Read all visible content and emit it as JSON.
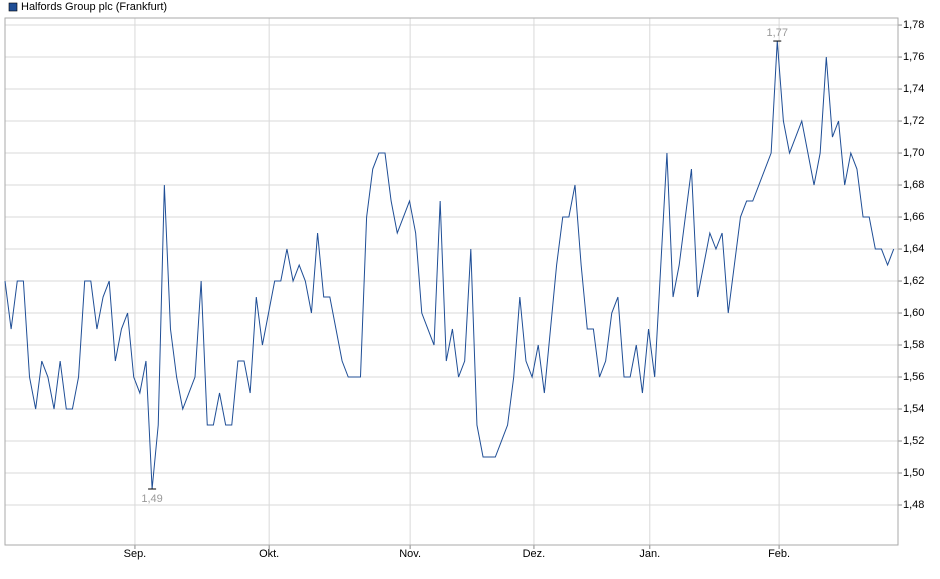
{
  "chart_data": {
    "type": "line",
    "x": [
      0,
      1,
      2,
      3,
      4,
      5,
      6,
      7,
      8,
      9,
      10,
      11,
      12,
      13,
      14,
      15,
      16,
      17,
      18,
      19,
      20,
      21,
      22,
      23,
      24,
      25,
      26,
      27,
      28,
      29,
      30,
      31,
      32,
      33,
      34,
      35,
      36,
      37,
      38,
      39,
      40,
      41,
      42,
      43,
      44,
      45,
      46,
      47,
      48,
      49,
      50,
      51,
      52,
      53,
      54,
      55,
      56,
      57,
      58,
      59,
      60,
      61,
      62,
      63,
      64,
      65,
      66,
      67,
      68,
      69,
      70,
      71,
      72,
      73,
      74,
      75,
      76,
      77,
      78,
      79,
      80,
      81,
      82,
      83,
      84,
      85,
      86,
      87,
      88,
      89,
      90,
      91,
      92,
      93,
      94,
      95,
      96,
      97,
      98,
      99,
      100,
      101,
      102,
      103,
      104,
      105,
      106,
      107,
      108,
      109,
      110,
      111,
      112,
      113,
      114,
      115,
      116,
      117,
      118,
      119,
      120,
      121,
      122,
      123,
      124,
      125,
      126,
      127,
      128,
      129,
      130,
      131,
      132,
      133,
      134,
      135,
      136,
      137,
      138,
      139,
      140,
      141,
      142,
      143,
      144,
      145
    ],
    "series": [
      {
        "name": "Halfords Group plc (Frankfurt)",
        "color": "#1f4e96",
        "values": [
          1.62,
          1.59,
          1.62,
          1.62,
          1.56,
          1.54,
          1.57,
          1.56,
          1.54,
          1.57,
          1.54,
          1.54,
          1.56,
          1.62,
          1.62,
          1.59,
          1.61,
          1.62,
          1.57,
          1.59,
          1.6,
          1.56,
          1.55,
          1.57,
          1.49,
          1.53,
          1.68,
          1.59,
          1.56,
          1.54,
          1.55,
          1.56,
          1.62,
          1.53,
          1.53,
          1.55,
          1.53,
          1.53,
          1.57,
          1.57,
          1.55,
          1.61,
          1.58,
          1.6,
          1.62,
          1.62,
          1.64,
          1.62,
          1.63,
          1.62,
          1.6,
          1.65,
          1.61,
          1.61,
          1.59,
          1.57,
          1.56,
          1.56,
          1.56,
          1.66,
          1.69,
          1.7,
          1.7,
          1.67,
          1.65,
          1.66,
          1.67,
          1.65,
          1.6,
          1.59,
          1.58,
          1.67,
          1.57,
          1.59,
          1.56,
          1.57,
          1.64,
          1.53,
          1.51,
          1.51,
          1.51,
          1.52,
          1.53,
          1.56,
          1.61,
          1.57,
          1.56,
          1.58,
          1.55,
          1.59,
          1.63,
          1.66,
          1.66,
          1.68,
          1.63,
          1.59,
          1.59,
          1.56,
          1.57,
          1.6,
          1.61,
          1.56,
          1.56,
          1.58,
          1.55,
          1.59,
          1.56,
          1.63,
          1.7,
          1.61,
          1.63,
          1.66,
          1.69,
          1.61,
          1.63,
          1.65,
          1.64,
          1.65,
          1.6,
          1.63,
          1.66,
          1.67,
          1.67,
          1.68,
          1.69,
          1.7,
          1.77,
          1.72,
          1.7,
          1.71,
          1.72,
          1.7,
          1.68,
          1.7,
          1.76,
          1.71,
          1.72,
          1.68,
          1.7,
          1.69,
          1.66,
          1.66,
          1.64,
          1.64,
          1.63,
          1.64
        ]
      }
    ],
    "xlim": [
      0,
      145.7
    ],
    "xticks": [
      {
        "value": 21.2,
        "label": "Sep."
      },
      {
        "value": 43.1,
        "label": "Okt."
      },
      {
        "value": 66.1,
        "label": "Nov."
      },
      {
        "value": 86.3,
        "label": "Dez."
      },
      {
        "value": 105.2,
        "label": "Jan."
      },
      {
        "value": 126.3,
        "label": "Feb."
      }
    ],
    "ylim": [
      1.455,
      1.7844
    ],
    "yticks": [
      {
        "value": 1.48,
        "label": "1,48"
      },
      {
        "value": 1.5,
        "label": "1,50"
      },
      {
        "value": 1.52,
        "label": "1,52"
      },
      {
        "value": 1.54,
        "label": "1,54"
      },
      {
        "value": 1.56,
        "label": "1,56"
      },
      {
        "value": 1.58,
        "label": "1,58"
      },
      {
        "value": 1.6,
        "label": "1,60"
      },
      {
        "value": 1.62,
        "label": "1,62"
      },
      {
        "value": 1.64,
        "label": "1,64"
      },
      {
        "value": 1.66,
        "label": "1,66"
      },
      {
        "value": 1.68,
        "label": "1,68"
      },
      {
        "value": 1.7,
        "label": "1,70"
      },
      {
        "value": 1.72,
        "label": "1,72"
      },
      {
        "value": 1.74,
        "label": "1,74"
      },
      {
        "value": 1.76,
        "label": "1,76"
      },
      {
        "value": 1.78,
        "label": "1,78"
      }
    ],
    "grid": true,
    "annotations": [
      {
        "label": "1,77",
        "x": 126,
        "y": 1.77,
        "position": "above"
      },
      {
        "label": "1,49",
        "x": 24,
        "y": 1.49,
        "position": "below"
      }
    ]
  }
}
